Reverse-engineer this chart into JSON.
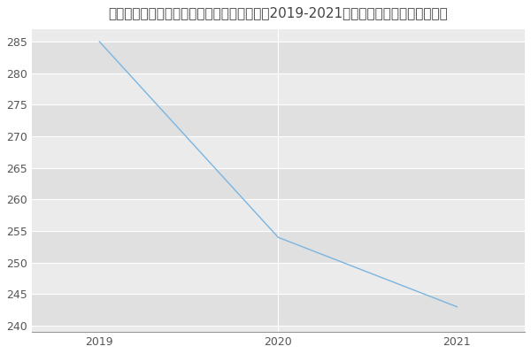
{
  "title": "昆明理工大学冶金与能源工程学院钒铁冶金（2019-2021历年复试）研究生录取分数线",
  "x": [
    2019,
    2020,
    2021
  ],
  "y": [
    285,
    254,
    243
  ],
  "line_color": "#7ab5e0",
  "xlim_left": 2018.62,
  "xlim_right": 2021.38,
  "ylim_bottom": 239,
  "ylim_top": 287,
  "yticks": [
    240,
    245,
    250,
    255,
    260,
    265,
    270,
    275,
    280,
    285
  ],
  "xticks": [
    2019,
    2020,
    2021
  ],
  "plot_bg_color": "#ebebeb",
  "band_color": "#e0e0e0",
  "fig_bg_color": "#ffffff",
  "title_fontsize": 11,
  "grid_color": "#ffffff",
  "line_width": 1.0,
  "tick_fontsize": 9,
  "title_color": "#444444"
}
